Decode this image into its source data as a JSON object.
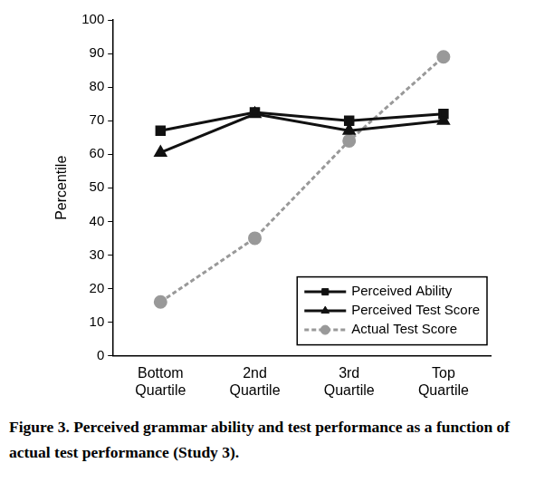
{
  "chart_data": {
    "type": "line",
    "title": "Figure 3. Perceived grammar ability and test performance as a function of actual test performance (Study 3).",
    "y_label": "Percentile",
    "categories": [
      "Bottom Quartile",
      "2nd Quartile",
      "3rd Quartile",
      "Top Quartile"
    ],
    "series": [
      {
        "name": "Perceived Ability",
        "color": "#111111",
        "marker": "square",
        "line_style": "solid",
        "values": [
          67,
          72.5,
          70,
          72
        ]
      },
      {
        "name": "Perceived Test Score",
        "color": "#111111",
        "marker": "triangle",
        "line_style": "solid",
        "values": [
          60.5,
          72,
          67,
          70
        ]
      },
      {
        "name": "Actual Test Score",
        "color": "#999999",
        "marker": "circle",
        "line_style": "dashed",
        "values": [
          16,
          35,
          64,
          89
        ]
      }
    ],
    "ylim": [
      0,
      100
    ],
    "yticks": [
      0,
      10,
      20,
      30,
      40,
      50,
      60,
      70,
      80,
      90,
      100
    ],
    "grid": false,
    "legend": "lower right"
  }
}
